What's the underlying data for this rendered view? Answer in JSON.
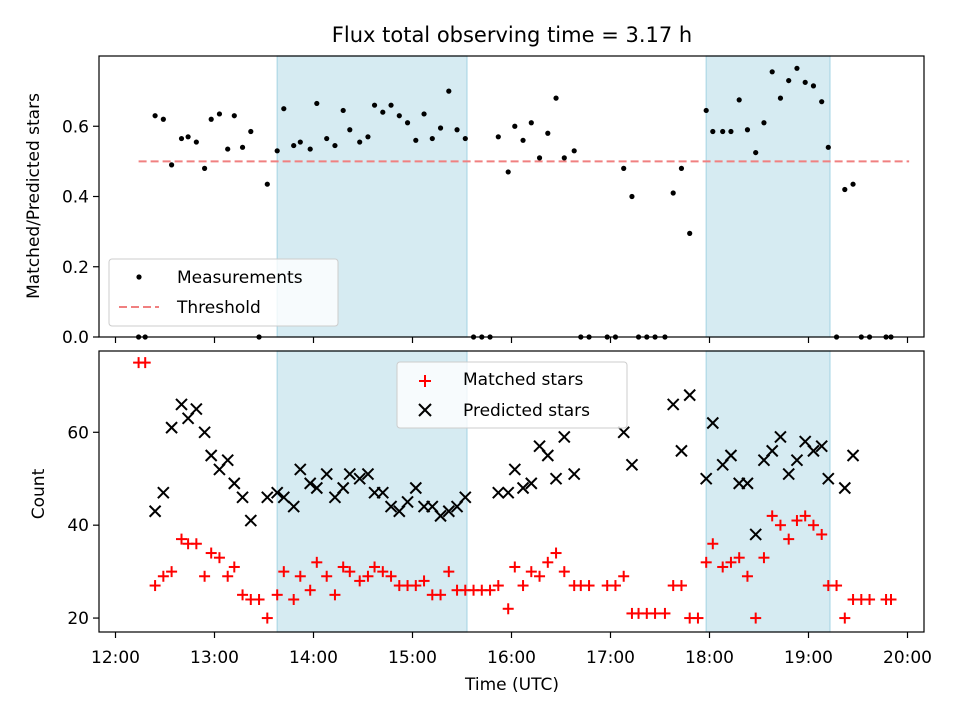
{
  "chart_data": [
    {
      "type": "scatter",
      "title": "Flux total observing time = 3.17 h",
      "xlabel": "",
      "ylabel": "Matched/Predicted stars",
      "xlim": [
        "11:50",
        "20:10"
      ],
      "ylim": [
        0,
        0.8
      ],
      "yticks": [
        "0.0",
        "0.2",
        "0.4",
        "0.6"
      ],
      "grid": false,
      "legend_position": "lower-left",
      "highlight_intervals": [
        [
          "13:38",
          "15:33"
        ],
        [
          "17:58",
          "19:13"
        ]
      ],
      "highlight_color": "#add8e6",
      "threshold": {
        "name": "Threshold",
        "value": 0.5,
        "x_range": [
          "12:14",
          "20:01"
        ],
        "color": "#f08080",
        "style": "dashed"
      },
      "series": [
        {
          "name": "Measurements",
          "color": "#000000",
          "marker": "dot",
          "points": [
            [
              "12:14",
              0.0
            ],
            [
              "12:18",
              0.0
            ],
            [
              "12:24",
              0.63
            ],
            [
              "12:29",
              0.62
            ],
            [
              "12:34",
              0.49
            ],
            [
              "12:40",
              0.565
            ],
            [
              "12:44",
              0.57
            ],
            [
              "12:49",
              0.555
            ],
            [
              "12:54",
              0.48
            ],
            [
              "12:58",
              0.62
            ],
            [
              "13:03",
              0.635
            ],
            [
              "13:08",
              0.535
            ],
            [
              "13:12",
              0.63
            ],
            [
              "13:17",
              0.54
            ],
            [
              "13:22",
              0.585
            ],
            [
              "13:27",
              0.0
            ],
            [
              "13:32",
              0.435
            ],
            [
              "13:38",
              0.53
            ],
            [
              "13:42",
              0.65
            ],
            [
              "13:48",
              0.545
            ],
            [
              "13:52",
              0.555
            ],
            [
              "13:58",
              0.535
            ],
            [
              "14:02",
              0.665
            ],
            [
              "14:08",
              0.565
            ],
            [
              "14:13",
              0.545
            ],
            [
              "14:18",
              0.645
            ],
            [
              "14:22",
              0.59
            ],
            [
              "14:28",
              0.555
            ],
            [
              "14:33",
              0.57
            ],
            [
              "14:37",
              0.66
            ],
            [
              "14:42",
              0.64
            ],
            [
              "14:47",
              0.66
            ],
            [
              "14:52",
              0.63
            ],
            [
              "14:57",
              0.61
            ],
            [
              "15:02",
              0.56
            ],
            [
              "15:07",
              0.635
            ],
            [
              "15:12",
              0.565
            ],
            [
              "15:17",
              0.595
            ],
            [
              "15:22",
              0.7
            ],
            [
              "15:27",
              0.59
            ],
            [
              "15:32",
              0.565
            ],
            [
              "15:37",
              0.0
            ],
            [
              "15:42",
              0.0
            ],
            [
              "15:47",
              0.0
            ],
            [
              "15:52",
              0.57
            ],
            [
              "15:58",
              0.47
            ],
            [
              "16:02",
              0.6
            ],
            [
              "16:07",
              0.56
            ],
            [
              "16:12",
              0.61
            ],
            [
              "16:17",
              0.51
            ],
            [
              "16:22",
              0.58
            ],
            [
              "16:27",
              0.68
            ],
            [
              "16:32",
              0.51
            ],
            [
              "16:38",
              0.53
            ],
            [
              "16:42",
              0.0
            ],
            [
              "16:47",
              0.0
            ],
            [
              "16:58",
              0.0
            ],
            [
              "17:03",
              0.0
            ],
            [
              "17:08",
              0.48
            ],
            [
              "17:13",
              0.4
            ],
            [
              "17:17",
              0.0
            ],
            [
              "17:22",
              0.0
            ],
            [
              "17:27",
              0.0
            ],
            [
              "17:33",
              0.0
            ],
            [
              "17:38",
              0.41
            ],
            [
              "17:43",
              0.48
            ],
            [
              "17:48",
              0.295
            ],
            [
              "17:58",
              0.645
            ],
            [
              "18:02",
              0.585
            ],
            [
              "18:08",
              0.585
            ],
            [
              "18:13",
              0.585
            ],
            [
              "18:18",
              0.675
            ],
            [
              "18:23",
              0.59
            ],
            [
              "18:28",
              0.525
            ],
            [
              "18:33",
              0.61
            ],
            [
              "18:38",
              0.755
            ],
            [
              "18:43",
              0.68
            ],
            [
              "18:48",
              0.73
            ],
            [
              "18:53",
              0.765
            ],
            [
              "18:58",
              0.725
            ],
            [
              "19:03",
              0.715
            ],
            [
              "19:08",
              0.67
            ],
            [
              "19:12",
              0.54
            ],
            [
              "19:17",
              0.0
            ],
            [
              "19:22",
              0.42
            ],
            [
              "19:27",
              0.435
            ],
            [
              "19:32",
              0.0
            ],
            [
              "19:37",
              0.0
            ],
            [
              "19:47",
              0.0
            ],
            [
              "19:50",
              0.0
            ]
          ]
        }
      ]
    },
    {
      "type": "scatter",
      "title": "",
      "xlabel": "Time (UTC)",
      "ylabel": "Count",
      "xlim": [
        "11:50",
        "20:10"
      ],
      "ylim": [
        17,
        77.5
      ],
      "yticks": [
        "20",
        "40",
        "60"
      ],
      "xticks": [
        "12:00",
        "13:00",
        "14:00",
        "15:00",
        "16:00",
        "17:00",
        "18:00",
        "19:00",
        "20:00"
      ],
      "grid": false,
      "legend_position": "top-center",
      "highlight_intervals": [
        [
          "13:38",
          "15:33"
        ],
        [
          "17:58",
          "19:13"
        ]
      ],
      "highlight_color": "#add8e6",
      "series": [
        {
          "name": "Matched stars",
          "color": "#ff0000",
          "marker": "plus",
          "points": [
            [
              "12:14",
              75
            ],
            [
              "12:18",
              75
            ],
            [
              "12:24",
              27
            ],
            [
              "12:29",
              29
            ],
            [
              "12:34",
              30
            ],
            [
              "12:40",
              37
            ],
            [
              "12:44",
              36
            ],
            [
              "12:49",
              36
            ],
            [
              "12:54",
              29
            ],
            [
              "12:58",
              34
            ],
            [
              "13:03",
              33
            ],
            [
              "13:08",
              29
            ],
            [
              "13:12",
              31
            ],
            [
              "13:17",
              25
            ],
            [
              "13:22",
              24
            ],
            [
              "13:27",
              24
            ],
            [
              "13:32",
              20
            ],
            [
              "13:38",
              25
            ],
            [
              "13:42",
              30
            ],
            [
              "13:48",
              24
            ],
            [
              "13:52",
              29
            ],
            [
              "13:58",
              26
            ],
            [
              "14:02",
              32
            ],
            [
              "14:08",
              29
            ],
            [
              "14:13",
              25
            ],
            [
              "14:18",
              31
            ],
            [
              "14:22",
              30
            ],
            [
              "14:28",
              28
            ],
            [
              "14:33",
              29
            ],
            [
              "14:37",
              31
            ],
            [
              "14:42",
              30
            ],
            [
              "14:47",
              29
            ],
            [
              "14:52",
              27
            ],
            [
              "14:57",
              27
            ],
            [
              "15:02",
              27
            ],
            [
              "15:07",
              28
            ],
            [
              "15:12",
              25
            ],
            [
              "15:17",
              25
            ],
            [
              "15:22",
              30
            ],
            [
              "15:27",
              26
            ],
            [
              "15:32",
              26
            ],
            [
              "15:37",
              26
            ],
            [
              "15:42",
              26
            ],
            [
              "15:47",
              26
            ],
            [
              "15:52",
              27
            ],
            [
              "15:58",
              22
            ],
            [
              "16:02",
              31
            ],
            [
              "16:07",
              27
            ],
            [
              "16:12",
              30
            ],
            [
              "16:17",
              29
            ],
            [
              "16:22",
              32
            ],
            [
              "16:27",
              34
            ],
            [
              "16:32",
              30
            ],
            [
              "16:38",
              27
            ],
            [
              "16:42",
              27
            ],
            [
              "16:47",
              27
            ],
            [
              "16:58",
              27
            ],
            [
              "17:03",
              27
            ],
            [
              "17:08",
              29
            ],
            [
              "17:13",
              21
            ],
            [
              "17:17",
              21
            ],
            [
              "17:22",
              21
            ],
            [
              "17:27",
              21
            ],
            [
              "17:33",
              21
            ],
            [
              "17:38",
              27
            ],
            [
              "17:43",
              27
            ],
            [
              "17:48",
              20
            ],
            [
              "17:53",
              20
            ],
            [
              "17:58",
              32
            ],
            [
              "18:02",
              36
            ],
            [
              "18:08",
              31
            ],
            [
              "18:13",
              32
            ],
            [
              "18:18",
              33
            ],
            [
              "18:23",
              29
            ],
            [
              "18:28",
              20
            ],
            [
              "18:33",
              33
            ],
            [
              "18:38",
              42
            ],
            [
              "18:43",
              40
            ],
            [
              "18:48",
              37
            ],
            [
              "18:53",
              41
            ],
            [
              "18:58",
              42
            ],
            [
              "19:03",
              40
            ],
            [
              "19:08",
              38
            ],
            [
              "19:12",
              27
            ],
            [
              "19:17",
              27
            ],
            [
              "19:22",
              20
            ],
            [
              "19:27",
              24
            ],
            [
              "19:32",
              24
            ],
            [
              "19:37",
              24
            ],
            [
              "19:47",
              24
            ],
            [
              "19:50",
              24
            ]
          ]
        },
        {
          "name": "Predicted stars",
          "color": "#000000",
          "marker": "x",
          "points": [
            [
              "12:24",
              43
            ],
            [
              "12:29",
              47
            ],
            [
              "12:34",
              61
            ],
            [
              "12:40",
              66
            ],
            [
              "12:44",
              63
            ],
            [
              "12:49",
              65
            ],
            [
              "12:54",
              60
            ],
            [
              "12:58",
              55
            ],
            [
              "13:03",
              52
            ],
            [
              "13:08",
              54
            ],
            [
              "13:12",
              49
            ],
            [
              "13:17",
              46
            ],
            [
              "13:22",
              41
            ],
            [
              "13:32",
              46
            ],
            [
              "13:38",
              47
            ],
            [
              "13:42",
              46
            ],
            [
              "13:48",
              44
            ],
            [
              "13:52",
              52
            ],
            [
              "13:58",
              49
            ],
            [
              "14:02",
              48
            ],
            [
              "14:08",
              51
            ],
            [
              "14:13",
              46
            ],
            [
              "14:18",
              48
            ],
            [
              "14:22",
              51
            ],
            [
              "14:28",
              50
            ],
            [
              "14:33",
              51
            ],
            [
              "14:37",
              47
            ],
            [
              "14:42",
              47
            ],
            [
              "14:47",
              44
            ],
            [
              "14:52",
              43
            ],
            [
              "14:57",
              45
            ],
            [
              "15:02",
              48
            ],
            [
              "15:07",
              44
            ],
            [
              "15:12",
              44
            ],
            [
              "15:17",
              42
            ],
            [
              "15:22",
              43
            ],
            [
              "15:27",
              44
            ],
            [
              "15:32",
              46
            ],
            [
              "15:52",
              47
            ],
            [
              "15:58",
              47
            ],
            [
              "16:02",
              52
            ],
            [
              "16:07",
              48
            ],
            [
              "16:12",
              49
            ],
            [
              "16:17",
              57
            ],
            [
              "16:22",
              55
            ],
            [
              "16:27",
              50
            ],
            [
              "16:32",
              59
            ],
            [
              "16:38",
              51
            ],
            [
              "17:08",
              60
            ],
            [
              "17:13",
              53
            ],
            [
              "17:38",
              66
            ],
            [
              "17:43",
              56
            ],
            [
              "17:48",
              68
            ],
            [
              "17:58",
              50
            ],
            [
              "18:02",
              62
            ],
            [
              "18:08",
              53
            ],
            [
              "18:13",
              55
            ],
            [
              "18:18",
              49
            ],
            [
              "18:23",
              49
            ],
            [
              "18:28",
              38
            ],
            [
              "18:33",
              54
            ],
            [
              "18:38",
              56
            ],
            [
              "18:43",
              59
            ],
            [
              "18:48",
              51
            ],
            [
              "18:53",
              54
            ],
            [
              "18:58",
              58
            ],
            [
              "19:03",
              56
            ],
            [
              "19:08",
              57
            ],
            [
              "19:12",
              50
            ],
            [
              "19:22",
              48
            ],
            [
              "19:27",
              55
            ]
          ]
        }
      ]
    }
  ]
}
